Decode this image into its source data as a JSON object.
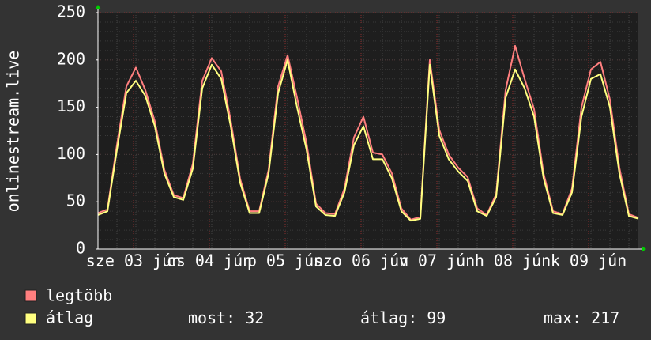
{
  "chart_data": {
    "type": "line",
    "y_label": "onlinestream.live",
    "x_labels": [
      "sze 03 jún",
      "cs 04 jún",
      "p 05 jún",
      "szo 06 jún",
      "v 07 jún",
      "h 08 jún",
      "k 09 jún"
    ],
    "ylim": [
      0,
      250
    ],
    "yticks": [
      0,
      50,
      100,
      150,
      200,
      250
    ],
    "grid": true,
    "series": [
      {
        "name": "legtöbb",
        "color": "#ff7f7f",
        "values": [
          38,
          42,
          110,
          172,
          192,
          168,
          135,
          84,
          57,
          54,
          90,
          178,
          202,
          188,
          136,
          74,
          40,
          40,
          84,
          172,
          205,
          160,
          112,
          48,
          38,
          37,
          64,
          118,
          140,
          102,
          100,
          80,
          43,
          31,
          34,
          200,
          126,
          100,
          86,
          76,
          43,
          36,
          58,
          168,
          215,
          180,
          148,
          80,
          40,
          37,
          64,
          150,
          190,
          198,
          158,
          86,
          37,
          33
        ]
      },
      {
        "name": "átlag",
        "color": "#ffff80",
        "values": [
          36,
          40,
          105,
          165,
          178,
          162,
          130,
          80,
          55,
          52,
          85,
          170,
          195,
          180,
          130,
          70,
          38,
          38,
          80,
          165,
          200,
          150,
          105,
          45,
          36,
          35,
          60,
          110,
          130,
          95,
          95,
          75,
          40,
          30,
          32,
          195,
          120,
          95,
          82,
          72,
          40,
          35,
          55,
          160,
          190,
          170,
          140,
          75,
          38,
          36,
          60,
          140,
          180,
          185,
          150,
          80,
          35,
          32
        ]
      }
    ],
    "stats": [
      {
        "label": "most:",
        "value": 32
      },
      {
        "label": "átlag:",
        "value": 99
      },
      {
        "label": "max:",
        "value": 217
      }
    ]
  }
}
